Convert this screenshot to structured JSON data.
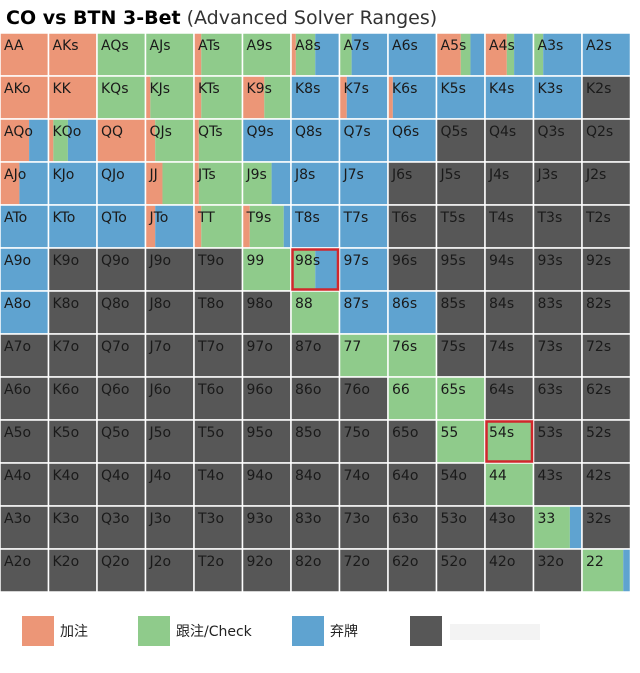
{
  "chart_data": {
    "type": "range-grid",
    "title": "CO vs BTN 3-Bet",
    "subtitle": "(Advanced Solver Ranges)",
    "legend": [
      "加注",
      "跟注/Check",
      "弃牌"
    ],
    "colors": [
      "#ec9677",
      "#8fcb8b",
      "#5fa3d0",
      "#575757"
    ],
    "highlighted": [
      "98s",
      "54s"
    ],
    "highlight_color": "#d0272c",
    "cells": [
      [
        "AA",
        "AKs",
        "AQs",
        "AJs",
        "ATs",
        "A9s",
        "A8s",
        "A7s",
        "A6s",
        "A5s",
        "A4s",
        "A3s",
        "A2s"
      ],
      [
        "AKo",
        "KK",
        "KQs",
        "KJs",
        "KTs",
        "K9s",
        "K8s",
        "K7s",
        "K6s",
        "K5s",
        "K4s",
        "K3s",
        "K2s"
      ],
      [
        "AQo",
        "KQo",
        "QQ",
        "QJs",
        "QTs",
        "Q9s",
        "Q8s",
        "Q7s",
        "Q6s",
        "Q5s",
        "Q4s",
        "Q3s",
        "Q2s"
      ],
      [
        "AJo",
        "KJo",
        "QJo",
        "JJ",
        "JTs",
        "J9s",
        "J8s",
        "J7s",
        "J6s",
        "J5s",
        "J4s",
        "J3s",
        "J2s"
      ],
      [
        "ATo",
        "KTo",
        "QTo",
        "JTo",
        "TT",
        "T9s",
        "T8s",
        "T7s",
        "T6s",
        "T5s",
        "T4s",
        "T3s",
        "T2s"
      ],
      [
        "A9o",
        "K9o",
        "Q9o",
        "J9o",
        "T9o",
        "99",
        "98s",
        "97s",
        "96s",
        "95s",
        "94s",
        "93s",
        "92s"
      ],
      [
        "A8o",
        "K8o",
        "Q8o",
        "J8o",
        "T8o",
        "98o",
        "88",
        "87s",
        "86s",
        "85s",
        "84s",
        "83s",
        "82s"
      ],
      [
        "A7o",
        "K7o",
        "Q7o",
        "J7o",
        "T7o",
        "97o",
        "87o",
        "77",
        "76s",
        "75s",
        "74s",
        "73s",
        "72s"
      ],
      [
        "A6o",
        "K6o",
        "Q6o",
        "J6o",
        "T6o",
        "96o",
        "86o",
        "76o",
        "66",
        "65s",
        "64s",
        "63s",
        "62s"
      ],
      [
        "A5o",
        "K5o",
        "Q5o",
        "J5o",
        "T5o",
        "95o",
        "85o",
        "75o",
        "65o",
        "55",
        "54s",
        "53s",
        "52s"
      ],
      [
        "A4o",
        "K4o",
        "Q4o",
        "J4o",
        "T4o",
        "94o",
        "84o",
        "74o",
        "64o",
        "54o",
        "44",
        "43s",
        "42s"
      ],
      [
        "A3o",
        "K3o",
        "Q3o",
        "J3o",
        "T3o",
        "93o",
        "83o",
        "73o",
        "63o",
        "53o",
        "43o",
        "33",
        "32s"
      ],
      [
        "A2o",
        "K2o",
        "Q2o",
        "J2o",
        "T2o",
        "92o",
        "82o",
        "72o",
        "62o",
        "52o",
        "42o",
        "32o",
        "22"
      ]
    ],
    "frequencies": [
      [
        [
          100,
          0,
          0,
          0
        ],
        [
          100,
          0,
          0,
          0
        ],
        [
          0,
          100,
          0,
          0
        ],
        [
          0,
          100,
          0,
          0
        ],
        [
          15,
          85,
          0,
          0
        ],
        [
          0,
          100,
          0,
          0
        ],
        [
          10,
          40,
          50,
          0
        ],
        [
          0,
          25,
          75,
          0
        ],
        [
          0,
          0,
          100,
          0
        ],
        [
          50,
          20,
          30,
          0
        ],
        [
          45,
          15,
          40,
          0
        ],
        [
          0,
          20,
          80,
          0
        ],
        [
          0,
          0,
          100,
          0
        ]
      ],
      [
        [
          100,
          0,
          0,
          0
        ],
        [
          100,
          0,
          0,
          0
        ],
        [
          0,
          100,
          0,
          0
        ],
        [
          10,
          90,
          0,
          0
        ],
        [
          15,
          85,
          0,
          0
        ],
        [
          45,
          55,
          0,
          0
        ],
        [
          0,
          0,
          100,
          0
        ],
        [
          15,
          0,
          85,
          0
        ],
        [
          10,
          0,
          90,
          0
        ],
        [
          0,
          0,
          100,
          0
        ],
        [
          0,
          0,
          100,
          0
        ],
        [
          0,
          0,
          100,
          0
        ],
        [
          0,
          0,
          0,
          100
        ]
      ],
      [
        [
          60,
          0,
          40,
          0
        ],
        [
          10,
          30,
          60,
          0
        ],
        [
          100,
          0,
          0,
          0
        ],
        [
          20,
          80,
          0,
          0
        ],
        [
          10,
          90,
          0,
          0
        ],
        [
          0,
          0,
          100,
          0
        ],
        [
          0,
          0,
          100,
          0
        ],
        [
          0,
          0,
          100,
          0
        ],
        [
          0,
          0,
          100,
          0
        ],
        [
          0,
          0,
          0,
          100
        ],
        [
          0,
          0,
          0,
          100
        ],
        [
          0,
          0,
          0,
          100
        ],
        [
          0,
          0,
          0,
          100
        ]
      ],
      [
        [
          40,
          0,
          60,
          0
        ],
        [
          0,
          0,
          100,
          0
        ],
        [
          0,
          0,
          100,
          0
        ],
        [
          35,
          65,
          0,
          0
        ],
        [
          10,
          90,
          0,
          0
        ],
        [
          0,
          60,
          40,
          0
        ],
        [
          0,
          0,
          100,
          0
        ],
        [
          0,
          0,
          100,
          0
        ],
        [
          0,
          0,
          0,
          100
        ],
        [
          0,
          0,
          0,
          100
        ],
        [
          0,
          0,
          0,
          100
        ],
        [
          0,
          0,
          0,
          100
        ],
        [
          0,
          0,
          0,
          100
        ]
      ],
      [
        [
          0,
          0,
          100,
          0
        ],
        [
          0,
          0,
          100,
          0
        ],
        [
          0,
          0,
          100,
          0
        ],
        [
          20,
          0,
          80,
          0
        ],
        [
          15,
          85,
          0,
          0
        ],
        [
          15,
          70,
          15,
          0
        ],
        [
          0,
          0,
          100,
          0
        ],
        [
          0,
          0,
          100,
          0
        ],
        [
          0,
          0,
          0,
          100
        ],
        [
          0,
          0,
          0,
          100
        ],
        [
          0,
          0,
          0,
          100
        ],
        [
          0,
          0,
          0,
          100
        ],
        [
          0,
          0,
          0,
          100
        ]
      ],
      [
        [
          0,
          0,
          100,
          0
        ],
        [
          0,
          0,
          0,
          100
        ],
        [
          0,
          0,
          0,
          100
        ],
        [
          0,
          0,
          0,
          100
        ],
        [
          0,
          0,
          0,
          100
        ],
        [
          0,
          100,
          0,
          0
        ],
        [
          0,
          50,
          50,
          0
        ],
        [
          0,
          0,
          100,
          0
        ],
        [
          0,
          0,
          0,
          100
        ],
        [
          0,
          0,
          0,
          100
        ],
        [
          0,
          0,
          0,
          100
        ],
        [
          0,
          0,
          0,
          100
        ],
        [
          0,
          0,
          0,
          100
        ]
      ],
      [
        [
          0,
          0,
          100,
          0
        ],
        [
          0,
          0,
          0,
          100
        ],
        [
          0,
          0,
          0,
          100
        ],
        [
          0,
          0,
          0,
          100
        ],
        [
          0,
          0,
          0,
          100
        ],
        [
          0,
          0,
          0,
          100
        ],
        [
          0,
          100,
          0,
          0
        ],
        [
          0,
          0,
          100,
          0
        ],
        [
          0,
          0,
          100,
          0
        ],
        [
          0,
          0,
          0,
          100
        ],
        [
          0,
          0,
          0,
          100
        ],
        [
          0,
          0,
          0,
          100
        ],
        [
          0,
          0,
          0,
          100
        ]
      ],
      [
        [
          0,
          0,
          0,
          100
        ],
        [
          0,
          0,
          0,
          100
        ],
        [
          0,
          0,
          0,
          100
        ],
        [
          0,
          0,
          0,
          100
        ],
        [
          0,
          0,
          0,
          100
        ],
        [
          0,
          0,
          0,
          100
        ],
        [
          0,
          0,
          0,
          100
        ],
        [
          0,
          100,
          0,
          0
        ],
        [
          0,
          100,
          0,
          0
        ],
        [
          0,
          0,
          0,
          100
        ],
        [
          0,
          0,
          0,
          100
        ],
        [
          0,
          0,
          0,
          100
        ],
        [
          0,
          0,
          0,
          100
        ]
      ],
      [
        [
          0,
          0,
          0,
          100
        ],
        [
          0,
          0,
          0,
          100
        ],
        [
          0,
          0,
          0,
          100
        ],
        [
          0,
          0,
          0,
          100
        ],
        [
          0,
          0,
          0,
          100
        ],
        [
          0,
          0,
          0,
          100
        ],
        [
          0,
          0,
          0,
          100
        ],
        [
          0,
          0,
          0,
          100
        ],
        [
          0,
          100,
          0,
          0
        ],
        [
          0,
          100,
          0,
          0
        ],
        [
          0,
          0,
          0,
          100
        ],
        [
          0,
          0,
          0,
          100
        ],
        [
          0,
          0,
          0,
          100
        ]
      ],
      [
        [
          0,
          0,
          0,
          100
        ],
        [
          0,
          0,
          0,
          100
        ],
        [
          0,
          0,
          0,
          100
        ],
        [
          0,
          0,
          0,
          100
        ],
        [
          0,
          0,
          0,
          100
        ],
        [
          0,
          0,
          0,
          100
        ],
        [
          0,
          0,
          0,
          100
        ],
        [
          0,
          0,
          0,
          100
        ],
        [
          0,
          0,
          0,
          100
        ],
        [
          0,
          100,
          0,
          0
        ],
        [
          0,
          100,
          0,
          0
        ],
        [
          0,
          0,
          0,
          100
        ],
        [
          0,
          0,
          0,
          100
        ]
      ],
      [
        [
          0,
          0,
          0,
          100
        ],
        [
          0,
          0,
          0,
          100
        ],
        [
          0,
          0,
          0,
          100
        ],
        [
          0,
          0,
          0,
          100
        ],
        [
          0,
          0,
          0,
          100
        ],
        [
          0,
          0,
          0,
          100
        ],
        [
          0,
          0,
          0,
          100
        ],
        [
          0,
          0,
          0,
          100
        ],
        [
          0,
          0,
          0,
          100
        ],
        [
          0,
          0,
          0,
          100
        ],
        [
          0,
          100,
          0,
          0
        ],
        [
          0,
          0,
          0,
          100
        ],
        [
          0,
          0,
          0,
          100
        ]
      ],
      [
        [
          0,
          0,
          0,
          100
        ],
        [
          0,
          0,
          0,
          100
        ],
        [
          0,
          0,
          0,
          100
        ],
        [
          0,
          0,
          0,
          100
        ],
        [
          0,
          0,
          0,
          100
        ],
        [
          0,
          0,
          0,
          100
        ],
        [
          0,
          0,
          0,
          100
        ],
        [
          0,
          0,
          0,
          100
        ],
        [
          0,
          0,
          0,
          100
        ],
        [
          0,
          0,
          0,
          100
        ],
        [
          0,
          0,
          0,
          100
        ],
        [
          0,
          75,
          25,
          0
        ],
        [
          0,
          0,
          0,
          100
        ]
      ],
      [
        [
          0,
          0,
          0,
          100
        ],
        [
          0,
          0,
          0,
          100
        ],
        [
          0,
          0,
          0,
          100
        ],
        [
          0,
          0,
          0,
          100
        ],
        [
          0,
          0,
          0,
          100
        ],
        [
          0,
          0,
          0,
          100
        ],
        [
          0,
          0,
          0,
          100
        ],
        [
          0,
          0,
          0,
          100
        ],
        [
          0,
          0,
          0,
          100
        ],
        [
          0,
          0,
          0,
          100
        ],
        [
          0,
          0,
          0,
          100
        ],
        [
          0,
          0,
          0,
          100
        ],
        [
          0,
          85,
          15,
          0
        ]
      ]
    ]
  }
}
